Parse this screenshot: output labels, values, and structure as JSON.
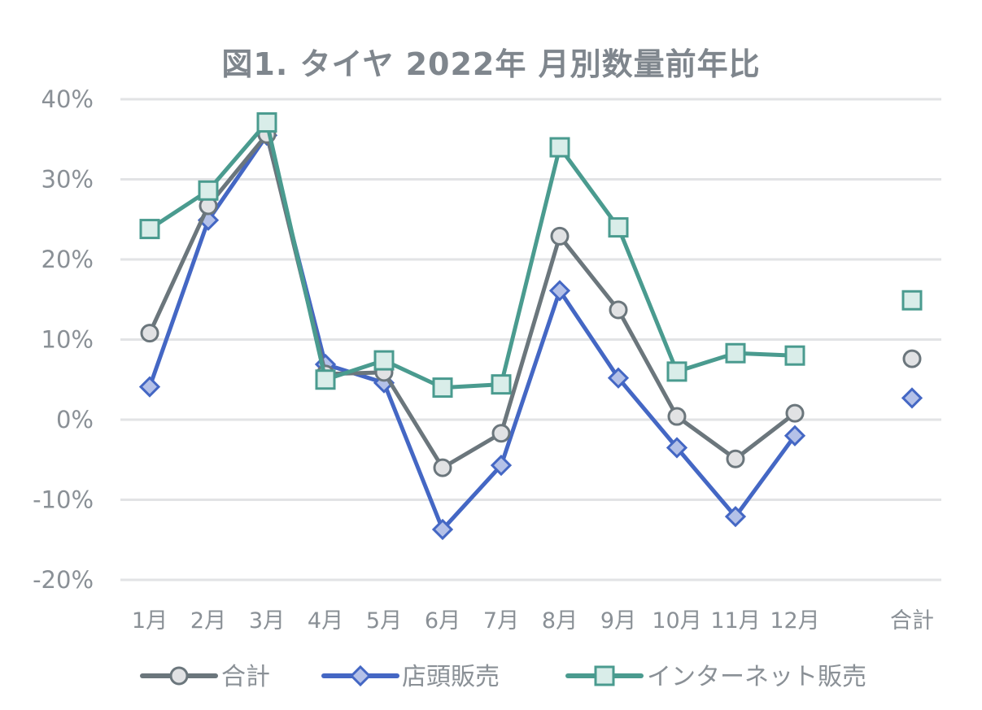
{
  "chart_data": {
    "type": "line",
    "title": "図1. タイヤ 2022年 月別数量前年比",
    "xlabel": "",
    "ylabel": "",
    "ylim": [
      -0.2,
      0.4
    ],
    "yticks": [
      "40%",
      "30%",
      "20%",
      "10%",
      "0%",
      "-10%",
      "-20%"
    ],
    "ytick_values": [
      0.4,
      0.3,
      0.2,
      0.1,
      0.0,
      -0.1,
      -0.2
    ],
    "grid": true,
    "legend_position": "bottom",
    "categories": [
      "1月",
      "2月",
      "3月",
      "4月",
      "5月",
      "6月",
      "7月",
      "8月",
      "9月",
      "10月",
      "11月",
      "12月",
      "合計"
    ],
    "series": [
      {
        "name": "合計",
        "marker": "circle",
        "line_color": "#6b767c",
        "fill_color": "#e1e2e4",
        "connect_last": false,
        "values": [
          0.108,
          0.267,
          0.356,
          0.057,
          0.059,
          -0.06,
          -0.017,
          0.229,
          0.137,
          0.004,
          -0.049,
          0.008,
          0.076
        ]
      },
      {
        "name": "店頭販売",
        "marker": "diamond",
        "line_color": "#4467c4",
        "fill_color": "#b4c1e8",
        "connect_last": false,
        "values": [
          0.041,
          0.249,
          0.355,
          0.069,
          0.046,
          -0.137,
          -0.057,
          0.161,
          0.052,
          -0.035,
          -0.121,
          -0.02,
          0.027
        ]
      },
      {
        "name": "インターネット販売",
        "marker": "square",
        "line_color": "#4a9b8f",
        "fill_color": "#d9ede9",
        "connect_last": false,
        "values": [
          0.238,
          0.286,
          0.371,
          0.05,
          0.074,
          0.04,
          0.044,
          0.34,
          0.24,
          0.06,
          0.083,
          0.08,
          0.149
        ]
      }
    ]
  },
  "title": "図1. タイヤ 2022年 月別数量前年比",
  "legend": [
    "合計",
    "店頭販売",
    "インターネット販売"
  ]
}
